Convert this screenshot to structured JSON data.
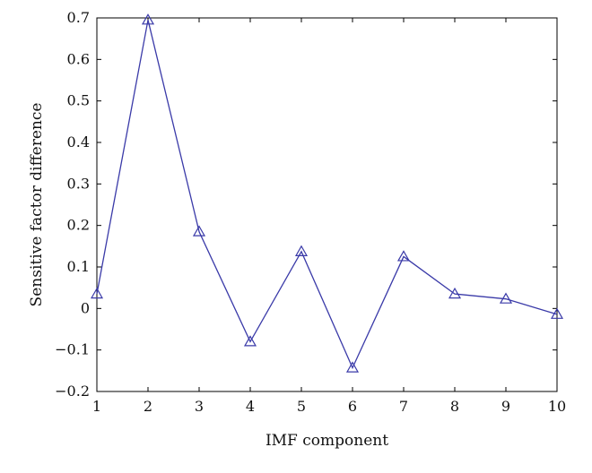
{
  "chart_data": {
    "type": "line",
    "title": "",
    "xlabel": "IMF component",
    "ylabel": "Sensitive factor difference",
    "xlim": [
      1,
      10
    ],
    "ylim": [
      -0.2,
      0.7
    ],
    "x_ticks": [
      1,
      2,
      3,
      4,
      5,
      6,
      7,
      8,
      9,
      10
    ],
    "y_ticks": [
      -0.2,
      -0.1,
      0,
      0.1,
      0.2,
      0.3,
      0.4,
      0.5,
      0.6,
      0.7
    ],
    "x_tick_labels": [
      "1",
      "2",
      "3",
      "4",
      "5",
      "6",
      "7",
      "8",
      "9",
      "10"
    ],
    "y_tick_labels": [
      "−0.2",
      "−0.1",
      "0",
      "0.1",
      "0.2",
      "0.3",
      "0.4",
      "0.5",
      "0.6",
      "0.7"
    ],
    "grid": false,
    "series": [
      {
        "marker": "triangle",
        "color": "#3a3aa8",
        "x": [
          1,
          2,
          3,
          4,
          5,
          6,
          7,
          8,
          9,
          10
        ],
        "y": [
          0.035,
          0.695,
          0.185,
          -0.08,
          0.137,
          -0.143,
          0.125,
          0.035,
          0.023,
          -0.014
        ]
      }
    ]
  }
}
